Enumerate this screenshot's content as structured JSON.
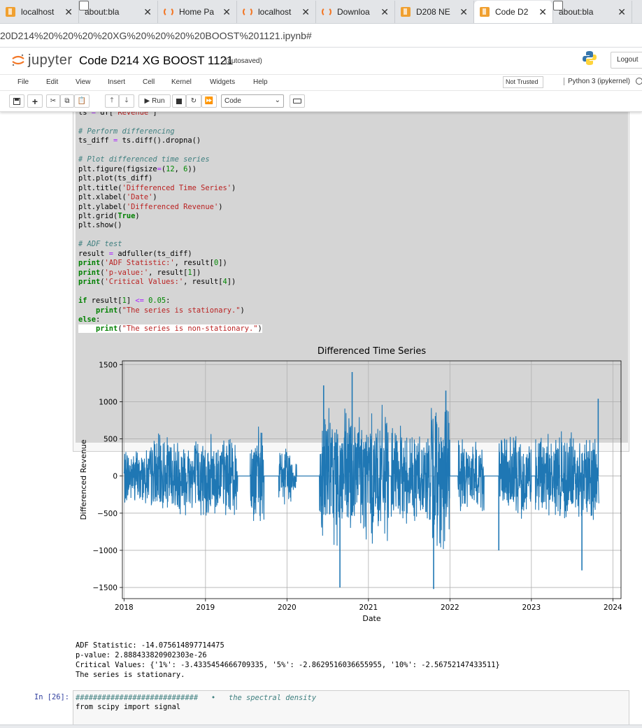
{
  "browser": {
    "tabs": [
      {
        "label": "localhost",
        "icon": "jupyter-book-icon"
      },
      {
        "label": "about:bla",
        "icon": "page-icon"
      },
      {
        "label": "Home Pa",
        "icon": "loading-icon"
      },
      {
        "label": "localhost",
        "icon": "loading-icon"
      },
      {
        "label": "Downloa",
        "icon": "loading-icon"
      },
      {
        "label": "D208 NE",
        "icon": "jupyter-book-icon"
      },
      {
        "label": "Code D2",
        "icon": "jupyter-book-icon"
      },
      {
        "label": "about:bla",
        "icon": "page-icon"
      }
    ],
    "url": "20D214%20%20%20%20XG%20%20%20%20BOOST%201121.ipynb#"
  },
  "jupyter": {
    "logo_text": "jupyter",
    "notebook_title": "Code D214 XG BOOST 1121",
    "autosaved": "(autosaved)",
    "logout": "Logout",
    "menu": [
      "File",
      "Edit",
      "View",
      "Insert",
      "Cell",
      "Kernel",
      "Widgets",
      "Help"
    ],
    "trust_status": "Not Trusted",
    "kernel": "Python 3 (ipykernel)",
    "toolbar": {
      "run_label": "Run",
      "cell_type": "Code"
    }
  },
  "cell1": {
    "lines": [
      "ts = df['Revenue']",
      "",
      "# Perform differencing",
      "ts_diff = ts.diff().dropna()",
      "",
      "# Plot differenced time series",
      "plt.figure(figsize=(12, 6))",
      "plt.plot(ts_diff)",
      "plt.title('Differenced Time Series')",
      "plt.xlabel('Date')",
      "plt.ylabel('Differenced Revenue')",
      "plt.grid(True)",
      "plt.show()",
      "",
      "# ADF test",
      "result = adfuller(ts_diff)",
      "print('ADF Statistic:', result[0])",
      "print('p-value:', result[1])",
      "print('Critical Values:', result[4])",
      "",
      "if result[1] <= 0.05:",
      "    print(\"The series is stationary.\")",
      "else:",
      "    print(\"The series is non-stationary.\")"
    ]
  },
  "chart_data": {
    "type": "line",
    "title": "Differenced Time Series",
    "xlabel": "Date",
    "ylabel": "Differenced Revenue",
    "xticks": [
      "2018",
      "2019",
      "2020",
      "2021",
      "2022",
      "2023",
      "2024"
    ],
    "yticks": [
      "1500",
      "1000",
      "500",
      "0",
      "−500",
      "−1000",
      "−1500"
    ],
    "xlim": [
      2017.98,
      2024.1
    ],
    "ylim": [
      -1650,
      1550
    ],
    "grid": true,
    "color": "#1f77b4",
    "segments": [
      {
        "start": 2018.0,
        "end": 2018.33,
        "amp": 420
      },
      {
        "start": 2018.33,
        "end": 2019.4,
        "amp": 600
      },
      {
        "start": 2019.55,
        "end": 2019.72,
        "amp": 700
      },
      {
        "start": 2019.9,
        "end": 2020.05,
        "amp": 450
      },
      {
        "start": 2020.0,
        "end": 2020.12,
        "amp": 280
      },
      {
        "start": 2020.4,
        "end": 2021.25,
        "amp": 1000
      },
      {
        "start": 2021.28,
        "end": 2021.75,
        "amp": 700
      },
      {
        "start": 2021.75,
        "end": 2022.0,
        "amp": 1100
      },
      {
        "start": 2022.1,
        "end": 2022.42,
        "amp": 550
      },
      {
        "start": 2022.6,
        "end": 2023.0,
        "amp": 600
      },
      {
        "start": 2023.05,
        "end": 2023.83,
        "amp": 650
      }
    ],
    "spikes": [
      {
        "x": 2020.65,
        "y": -1500
      },
      {
        "x": 2020.8,
        "y": 1400
      },
      {
        "x": 2021.8,
        "y": -1520
      },
      {
        "x": 2020.45,
        "y": 1220
      },
      {
        "x": 2022.6,
        "y": -1000
      },
      {
        "x": 2023.82,
        "y": 1040
      },
      {
        "x": 2023.62,
        "y": -1270
      },
      {
        "x": 2021.95,
        "y": 1150
      }
    ]
  },
  "output": {
    "lines": [
      "ADF Statistic: -14.075614897714475",
      "p-value: 2.888433820902303e-26",
      "Critical Values: {'1%': -3.4335454666709335, '5%': -2.8629516036655955, '10%': -2.56752147433511}",
      "The series is stationary."
    ]
  },
  "cell2": {
    "prompt": "In [26]:",
    "line1_hash": "############################   •",
    "line1_comment": "   the spectral density",
    "line2": "from scipy import signal"
  }
}
